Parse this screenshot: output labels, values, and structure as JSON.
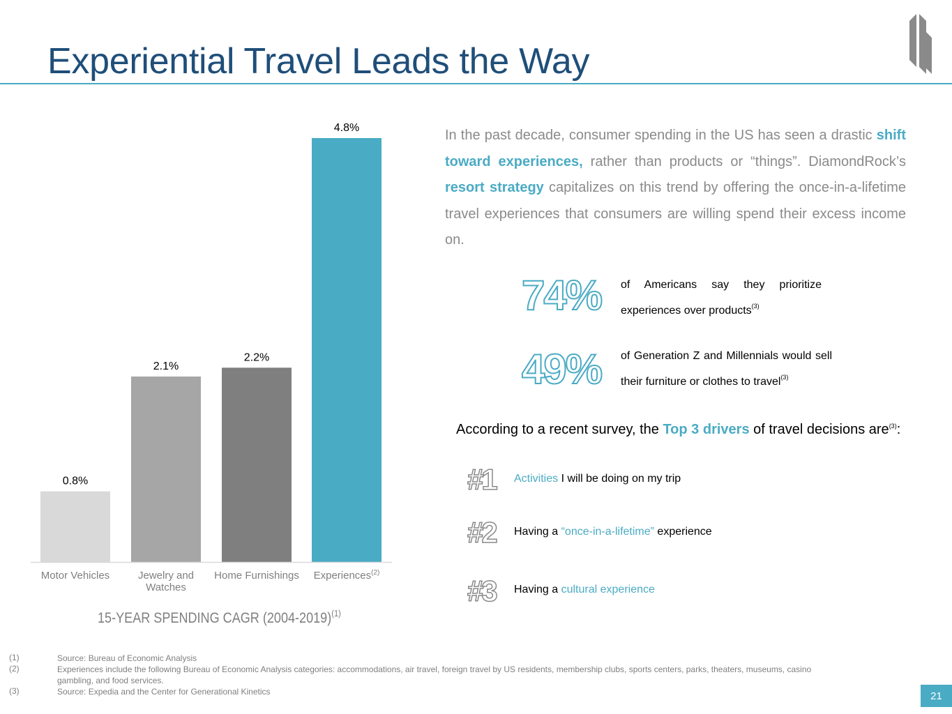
{
  "title": "Experiential Travel Leads the Way",
  "page_number": "21",
  "colors": {
    "title": "#1f4e79",
    "accent": "#4aabc4",
    "gray_text": "#8a8a8a"
  },
  "chart_data": {
    "type": "bar",
    "title": "15-YEAR SPENDING CAGR (2004-2019)",
    "title_footnote": "(1)",
    "categories": [
      "Motor Vehicles",
      "Jewelry and Watches",
      "Home Furnishings",
      "Experiences"
    ],
    "category_footnotes": [
      "",
      "",
      "",
      "(2)"
    ],
    "values": [
      0.8,
      2.1,
      2.2,
      4.8
    ],
    "value_labels": [
      "0.8%",
      "2.1%",
      "2.2%",
      "4.8%"
    ],
    "colors": [
      "#d9d9d9",
      "#a6a6a6",
      "#7f7f7f",
      "#4aabc4"
    ],
    "ylim": [
      0,
      4.8
    ],
    "grid": false,
    "legend": "none"
  },
  "intro": {
    "p1": "In the past decade, consumer spending in the US has seen a drastic ",
    "h1": "shift toward experiences,",
    "p2": " rather than products or “things”. DiamondRock’s ",
    "h2": "resort strategy",
    "p3": " capitalizes on this trend by  offering the once-in-a-lifetime travel experiences that consumers are willing spend their excess income on."
  },
  "stats": [
    {
      "value": "74%",
      "text": "of Americans say they prioritize experiences over products",
      "note": "(3)"
    },
    {
      "value": "49%",
      "text": "of Generation Z and Millennials would sell their furniture or clothes to travel",
      "note": "(3)"
    }
  ],
  "survey": {
    "pre": "According to a recent survey, the ",
    "highlight": "Top 3 drivers",
    "post": " of travel decisions are",
    "note": "(3)",
    "end": ":"
  },
  "drivers": [
    {
      "rank": "#1",
      "pre": "",
      "accent": "Activities",
      "post": " I will be doing on my trip"
    },
    {
      "rank": "#2",
      "pre": "Having a ",
      "accent": "“once-in-a-lifetime”",
      "post": " experience"
    },
    {
      "rank": "#3",
      "pre": "Having a ",
      "accent": "cultural experience",
      "post": ""
    }
  ],
  "footnotes": [
    {
      "num": "(1)",
      "text": "Source: Bureau of Economic Analysis"
    },
    {
      "num": "(2)",
      "text": "Experiences include the following Bureau of Economic Analysis categories: accommodations, air travel, foreign travel by US residents, membership clubs, sports centers, parks, theaters, museums, casino gambling, and food services."
    },
    {
      "num": "(3)",
      "text": "Source: Expedia and the Center for Generational Kinetics"
    }
  ]
}
